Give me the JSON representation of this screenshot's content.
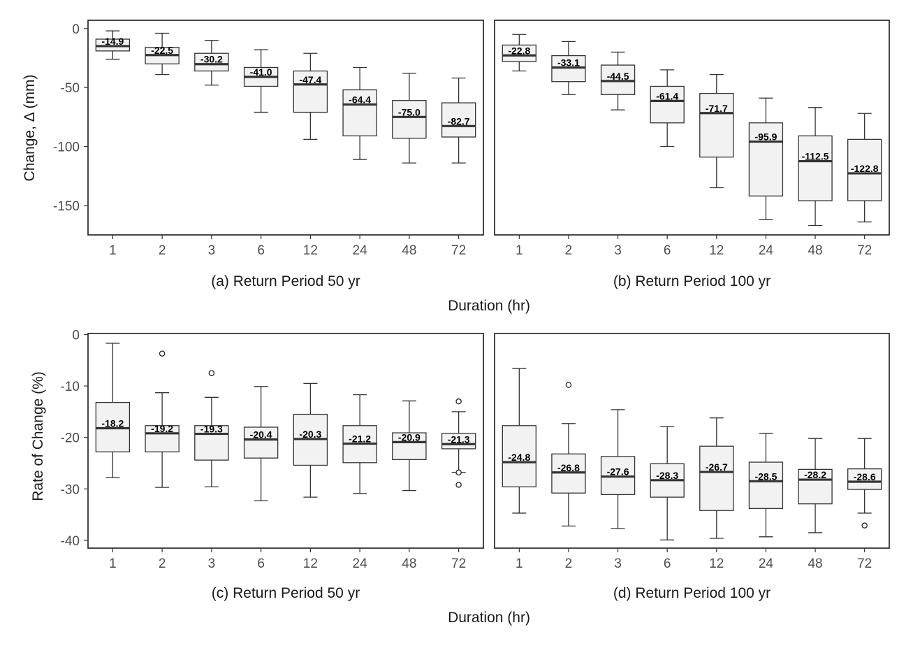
{
  "figure": {
    "row_titles": [
      "Duration (hr)",
      "Duration (hr)"
    ],
    "ylabels": [
      "Change, Δ (mm)",
      "Rate of Change (%)"
    ]
  },
  "chart_data": [
    {
      "type": "box",
      "title": "(a) Return Period 50 yr",
      "xlabel": "Duration (hr)",
      "ylabel": "Change, Δ (mm)",
      "categories": [
        "1",
        "2",
        "3",
        "6",
        "12",
        "24",
        "48",
        "72"
      ],
      "ylim": [
        -175,
        7
      ],
      "yticks": [
        0,
        -50,
        -100,
        -150
      ],
      "boxes": [
        {
          "min": -26,
          "q1": -19,
          "median": -14.9,
          "q3": -9,
          "max": -2,
          "label": "-14.9",
          "outliers": []
        },
        {
          "min": -39,
          "q1": -30,
          "median": -22.5,
          "q3": -16,
          "max": -4,
          "label": "-22.5",
          "outliers": []
        },
        {
          "min": -48,
          "q1": -36,
          "median": -30.2,
          "q3": -21,
          "max": -10,
          "label": "-30.2",
          "outliers": []
        },
        {
          "min": -71,
          "q1": -49,
          "median": -41.0,
          "q3": -33,
          "max": -18,
          "label": "-41.0",
          "outliers": []
        },
        {
          "min": -94,
          "q1": -71,
          "median": -47.4,
          "q3": -36,
          "max": -21,
          "label": "-47.4",
          "outliers": []
        },
        {
          "min": -111,
          "q1": -91,
          "median": -64.4,
          "q3": -52,
          "max": -33,
          "label": "-64.4",
          "outliers": []
        },
        {
          "min": -114,
          "q1": -93,
          "median": -75.0,
          "q3": -61,
          "max": -38,
          "label": "-75.0",
          "outliers": []
        },
        {
          "min": -114,
          "q1": -92,
          "median": -82.7,
          "q3": -63,
          "max": -42,
          "label": "-82.7",
          "outliers": []
        }
      ]
    },
    {
      "type": "box",
      "title": "(b) Return Period 100 yr",
      "xlabel": "Duration (hr)",
      "ylabel": "",
      "categories": [
        "1",
        "2",
        "3",
        "6",
        "12",
        "24",
        "48",
        "72"
      ],
      "ylim": [
        -175,
        7
      ],
      "yticks": [
        0,
        -50,
        -100,
        -150
      ],
      "boxes": [
        {
          "min": -36,
          "q1": -28,
          "median": -22.8,
          "q3": -14,
          "max": -5,
          "label": "-22.8",
          "outliers": []
        },
        {
          "min": -56,
          "q1": -45,
          "median": -33.1,
          "q3": -23,
          "max": -11,
          "label": "-33.1",
          "outliers": []
        },
        {
          "min": -69,
          "q1": -56,
          "median": -44.5,
          "q3": -31,
          "max": -20,
          "label": "-44.5",
          "outliers": []
        },
        {
          "min": -100,
          "q1": -80,
          "median": -61.4,
          "q3": -49,
          "max": -35,
          "label": "-61.4",
          "outliers": []
        },
        {
          "min": -135,
          "q1": -109,
          "median": -71.7,
          "q3": -55,
          "max": -39,
          "label": "-71.7",
          "outliers": []
        },
        {
          "min": -162,
          "q1": -142,
          "median": -95.9,
          "q3": -80,
          "max": -59,
          "label": "-95.9",
          "outliers": []
        },
        {
          "min": -167,
          "q1": -146,
          "median": -112.5,
          "q3": -91,
          "max": -67,
          "label": "-112.5",
          "outliers": []
        },
        {
          "min": -164,
          "q1": -146,
          "median": -122.8,
          "q3": -94,
          "max": -72,
          "label": "-122.8",
          "outliers": []
        }
      ]
    },
    {
      "type": "box",
      "title": "(c) Return Period 50 yr",
      "xlabel": "Duration (hr)",
      "ylabel": "Rate of Change (%)",
      "categories": [
        "1",
        "2",
        "3",
        "6",
        "12",
        "24",
        "48",
        "72"
      ],
      "ylim": [
        -41.5,
        0.2
      ],
      "yticks": [
        0,
        -10,
        -20,
        -30,
        -40
      ],
      "boxes": [
        {
          "min": -27.8,
          "q1": -22.8,
          "median": -18.2,
          "q3": -13.2,
          "max": -1.7,
          "label": "-18.2",
          "outliers": []
        },
        {
          "min": -29.7,
          "q1": -22.8,
          "median": -19.2,
          "q3": -17.7,
          "max": -11.3,
          "label": "-19.2",
          "outliers": [
            -3.7
          ]
        },
        {
          "min": -29.6,
          "q1": -24.4,
          "median": -19.3,
          "q3": -17.7,
          "max": -12.2,
          "label": "-19.3",
          "outliers": [
            -7.5
          ]
        },
        {
          "min": -32.3,
          "q1": -24.0,
          "median": -20.4,
          "q3": -18.0,
          "max": -10.1,
          "label": "-20.4",
          "outliers": []
        },
        {
          "min": -31.6,
          "q1": -25.4,
          "median": -20.3,
          "q3": -15.5,
          "max": -9.5,
          "label": "-20.3",
          "outliers": []
        },
        {
          "min": -30.9,
          "q1": -24.9,
          "median": -21.2,
          "q3": -17.7,
          "max": -11.7,
          "label": "-21.2",
          "outliers": []
        },
        {
          "min": -30.3,
          "q1": -24.3,
          "median": -20.9,
          "q3": -19.1,
          "max": -12.9,
          "label": "-20.9",
          "outliers": []
        },
        {
          "min": -26.8,
          "q1": -22.2,
          "median": -21.3,
          "q3": -19.2,
          "max": -15.0,
          "label": "-21.3",
          "outliers": [
            -13.0,
            -26.8,
            -29.2
          ]
        }
      ]
    },
    {
      "type": "box",
      "title": "(d) Return Period 100 yr",
      "xlabel": "Duration (hr)",
      "ylabel": "",
      "categories": [
        "1",
        "2",
        "3",
        "6",
        "12",
        "24",
        "48",
        "72"
      ],
      "ylim": [
        -41.5,
        0.2
      ],
      "yticks": [
        0,
        -10,
        -20,
        -30,
        -40
      ],
      "boxes": [
        {
          "min": -34.7,
          "q1": -29.6,
          "median": -24.8,
          "q3": -17.7,
          "max": -6.6,
          "label": "-24.8",
          "outliers": []
        },
        {
          "min": -37.2,
          "q1": -30.8,
          "median": -26.8,
          "q3": -23.2,
          "max": -17.3,
          "label": "-26.8",
          "outliers": [
            -9.8
          ]
        },
        {
          "min": -37.7,
          "q1": -31.1,
          "median": -27.6,
          "q3": -23.7,
          "max": -14.6,
          "label": "-27.6",
          "outliers": []
        },
        {
          "min": -39.9,
          "q1": -31.6,
          "median": -28.3,
          "q3": -25.1,
          "max": -17.9,
          "label": "-28.3",
          "outliers": []
        },
        {
          "min": -39.6,
          "q1": -34.2,
          "median": -26.7,
          "q3": -21.7,
          "max": -16.2,
          "label": "-26.7",
          "outliers": []
        },
        {
          "min": -39.3,
          "q1": -33.8,
          "median": -28.5,
          "q3": -24.8,
          "max": -19.2,
          "label": "-28.5",
          "outliers": []
        },
        {
          "min": -38.5,
          "q1": -32.9,
          "median": -28.2,
          "q3": -26.2,
          "max": -20.2,
          "label": "-28.2",
          "outliers": []
        },
        {
          "min": -34.7,
          "q1": -30.1,
          "median": -28.6,
          "q3": -26.1,
          "max": -20.2,
          "label": "-28.6",
          "outliers": [
            -37.1
          ]
        }
      ]
    }
  ]
}
